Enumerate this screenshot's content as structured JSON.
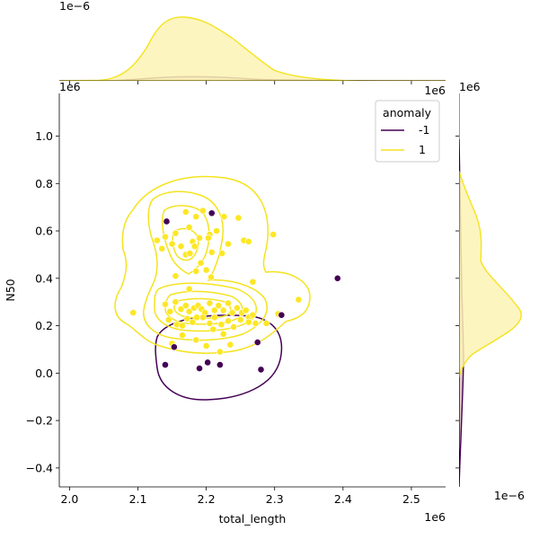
{
  "chart_data": {
    "type": "scatter",
    "title": "",
    "xlabel": "total_length",
    "ylabel": "N50",
    "x_offset_label": "1e6",
    "y_offset_label": "1e6",
    "top_marginal_offset_label": "1e−6",
    "top_marginal_right_offset_label": "1e6",
    "right_marginal_offset_label": "1e−6",
    "right_marginal_top_offset_label": "1e6",
    "xlim": [
      1.985,
      2.55
    ],
    "ylim": [
      -0.48,
      1.18
    ],
    "xticks": [
      2.0,
      2.1,
      2.2,
      2.3,
      2.4,
      2.5
    ],
    "xtick_labels": [
      "2.0",
      "2.1",
      "2.2",
      "2.3",
      "2.4",
      "2.5"
    ],
    "yticks": [
      -0.4,
      -0.2,
      0.0,
      0.2,
      0.4,
      0.6,
      0.8,
      1.0
    ],
    "ytick_labels": [
      "−0.4",
      "−0.2",
      "0.0",
      "0.2",
      "0.4",
      "0.6",
      "0.8",
      "1.0"
    ],
    "grid": false,
    "legend": {
      "title": "anomaly",
      "placement": "top-right",
      "entries": [
        {
          "label": "-1",
          "color": "#440154"
        },
        {
          "label": "1",
          "color": "#fde725"
        }
      ]
    },
    "colors": {
      "anomaly_neg": "#440154",
      "anomaly_pos": "#fde725",
      "contour_pos": "#f4e31f",
      "contour_neg": "#440154",
      "fill_pos": "#fdf3b4",
      "fill_neg": "#c9a7a0"
    },
    "series": [
      {
        "name": "-1",
        "color": "#440154",
        "points": [
          [
            2.142,
            0.64
          ],
          [
            2.208,
            0.675
          ],
          [
            2.392,
            0.4
          ],
          [
            2.31,
            0.245
          ],
          [
            2.153,
            0.11
          ],
          [
            2.14,
            0.035
          ],
          [
            2.19,
            0.02
          ],
          [
            2.202,
            0.045
          ],
          [
            2.22,
            0.035
          ],
          [
            2.275,
            0.13
          ],
          [
            2.28,
            0.015
          ]
        ]
      },
      {
        "name": "1",
        "color": "#fde725",
        "points": [
          [
            2.17,
            0.68
          ],
          [
            2.185,
            0.66
          ],
          [
            2.195,
            0.685
          ],
          [
            2.226,
            0.66
          ],
          [
            2.247,
            0.655
          ],
          [
            2.128,
            0.56
          ],
          [
            2.14,
            0.575
          ],
          [
            2.155,
            0.59
          ],
          [
            2.175,
            0.615
          ],
          [
            2.18,
            0.555
          ],
          [
            2.19,
            0.57
          ],
          [
            2.205,
            0.585
          ],
          [
            2.215,
            0.6
          ],
          [
            2.255,
            0.56
          ],
          [
            2.262,
            0.555
          ],
          [
            2.298,
            0.585
          ],
          [
            2.135,
            0.525
          ],
          [
            2.15,
            0.545
          ],
          [
            2.163,
            0.535
          ],
          [
            2.17,
            0.5
          ],
          [
            2.176,
            0.505
          ],
          [
            2.183,
            0.535
          ],
          [
            2.203,
            0.57
          ],
          [
            2.208,
            0.51
          ],
          [
            2.223,
            0.505
          ],
          [
            2.232,
            0.545
          ],
          [
            2.2,
            0.435
          ],
          [
            2.185,
            0.43
          ],
          [
            2.192,
            0.465
          ],
          [
            2.207,
            0.405
          ],
          [
            2.155,
            0.41
          ],
          [
            2.268,
            0.385
          ],
          [
            2.175,
            0.355
          ],
          [
            2.335,
            0.31
          ],
          [
            2.093,
            0.255
          ],
          [
            2.14,
            0.29
          ],
          [
            2.147,
            0.26
          ],
          [
            2.155,
            0.3
          ],
          [
            2.163,
            0.27
          ],
          [
            2.17,
            0.285
          ],
          [
            2.175,
            0.26
          ],
          [
            2.182,
            0.275
          ],
          [
            2.188,
            0.285
          ],
          [
            2.193,
            0.27
          ],
          [
            2.198,
            0.255
          ],
          [
            2.205,
            0.295
          ],
          [
            2.212,
            0.265
          ],
          [
            2.218,
            0.285
          ],
          [
            2.225,
            0.265
          ],
          [
            2.232,
            0.295
          ],
          [
            2.238,
            0.255
          ],
          [
            2.245,
            0.275
          ],
          [
            2.252,
            0.255
          ],
          [
            2.258,
            0.265
          ],
          [
            2.262,
            0.235
          ],
          [
            2.268,
            0.245
          ],
          [
            2.145,
            0.225
          ],
          [
            2.157,
            0.205
          ],
          [
            2.165,
            0.2
          ],
          [
            2.172,
            0.23
          ],
          [
            2.18,
            0.215
          ],
          [
            2.186,
            0.235
          ],
          [
            2.195,
            0.235
          ],
          [
            2.205,
            0.21
          ],
          [
            2.212,
            0.235
          ],
          [
            2.222,
            0.205
          ],
          [
            2.232,
            0.22
          ],
          [
            2.24,
            0.195
          ],
          [
            2.25,
            0.225
          ],
          [
            2.262,
            0.215
          ],
          [
            2.272,
            0.21
          ],
          [
            2.288,
            0.21
          ],
          [
            2.305,
            0.25
          ],
          [
            2.21,
            0.185
          ],
          [
            2.225,
            0.165
          ],
          [
            2.165,
            0.16
          ],
          [
            2.15,
            0.125
          ],
          [
            2.185,
            0.14
          ],
          [
            2.2,
            0.115
          ],
          [
            2.22,
            0.09
          ],
          [
            2.235,
            0.12
          ]
        ]
      }
    ]
  }
}
